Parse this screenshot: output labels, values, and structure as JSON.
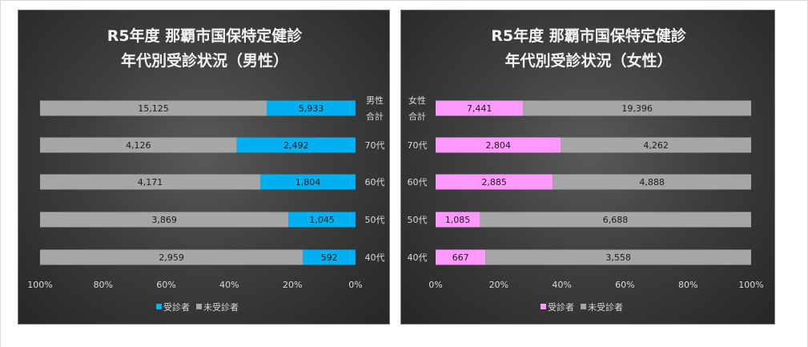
{
  "chart_data": [
    {
      "type": "bar",
      "orientation": "horizontal-100%-stacked",
      "x_reversed": true,
      "title_lines": [
        "R5年度 那覇市国保特定健診",
        "年代別受診状況（男性）"
      ],
      "categories": [
        [
          "男性",
          "合計"
        ],
        [
          "70代"
        ],
        [
          "60代"
        ],
        [
          "50代"
        ],
        [
          "40代"
        ]
      ],
      "series": [
        {
          "name": "受診者",
          "color": "#00b0f0",
          "values": [
            5933,
            2492,
            1804,
            1045,
            592
          ],
          "labels": [
            "5,933",
            "2,492",
            "1,804",
            "1,045",
            "592"
          ]
        },
        {
          "name": "未受診者",
          "color": "#a6a6a6",
          "values": [
            15125,
            4126,
            4171,
            3869,
            2959
          ],
          "labels": [
            "15,125",
            "4,126",
            "4,171",
            "3,869",
            "2,959"
          ]
        }
      ],
      "x_ticks": [
        "100%",
        "80%",
        "60%",
        "40%",
        "20%",
        "0%"
      ],
      "legend": {
        "position": "bottom",
        "items": [
          {
            "label": "受診者",
            "color": "#00b0f0"
          },
          {
            "label": "未受診者",
            "color": "#a6a6a6"
          }
        ]
      }
    },
    {
      "type": "bar",
      "orientation": "horizontal-100%-stacked",
      "x_reversed": false,
      "title_lines": [
        "R5年度 那覇市国保特定健診",
        "年代別受診状況（女性）"
      ],
      "categories": [
        [
          "女性",
          "合計"
        ],
        [
          "70代"
        ],
        [
          "60代"
        ],
        [
          "50代"
        ],
        [
          "40代"
        ]
      ],
      "series": [
        {
          "name": "受診者",
          "color": "#ff99ff",
          "values": [
            7441,
            2804,
            2885,
            1085,
            667
          ],
          "labels": [
            "7,441",
            "2,804",
            "2,885",
            "1,085",
            "667"
          ]
        },
        {
          "name": "未受診者",
          "color": "#a6a6a6",
          "values": [
            19396,
            4262,
            4888,
            6688,
            3558
          ],
          "labels": [
            "19,396",
            "4,262",
            "4,888",
            "6,688",
            "3,558"
          ]
        }
      ],
      "x_ticks": [
        "0%",
        "20%",
        "40%",
        "60%",
        "80%",
        "100%"
      ],
      "legend": {
        "position": "bottom",
        "items": [
          {
            "label": "受診者",
            "color": "#ff99ff"
          },
          {
            "label": "未受診者",
            "color": "#a6a6a6"
          }
        ]
      }
    }
  ]
}
